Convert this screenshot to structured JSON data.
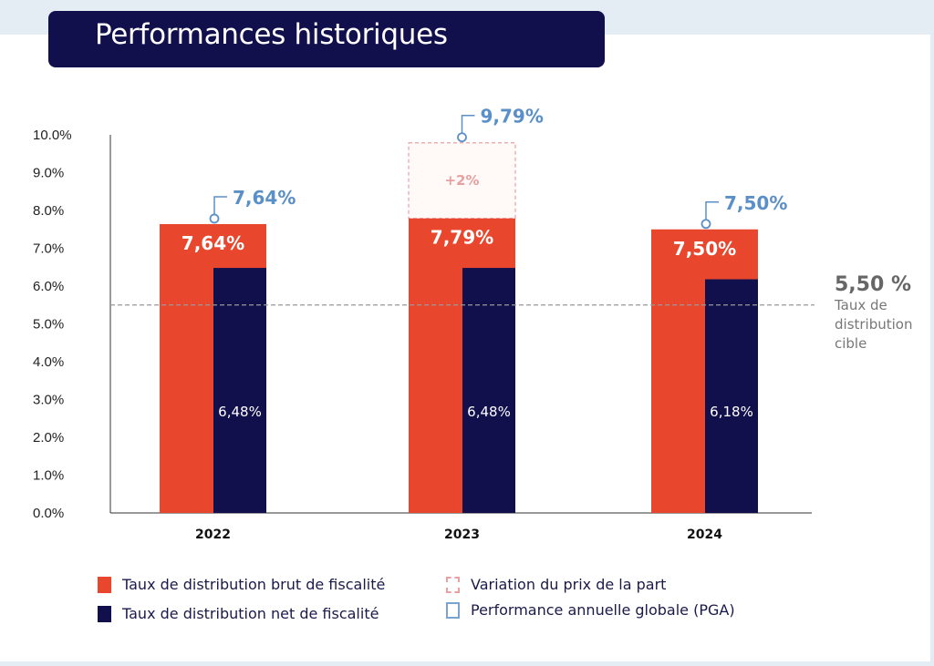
{
  "header": {
    "title": "Performances historiques"
  },
  "target": {
    "value": "5,50 %",
    "label_lines": [
      "Taux de",
      "distribution",
      "cible"
    ]
  },
  "chart_data": {
    "type": "bar",
    "categories": [
      "2022",
      "2023",
      "2024"
    ],
    "ylim": [
      0,
      10
    ],
    "yticks": [
      "0.0%",
      "1.0%",
      "2.0%",
      "3.0%",
      "4.0%",
      "5.0%",
      "6.0%",
      "7.0%",
      "8.0%",
      "9.0%",
      "10.0%"
    ],
    "series": [
      {
        "name": "Taux de distribution brut de fiscalité",
        "values": [
          7.64,
          7.79,
          7.5
        ],
        "labels": [
          "7,64%",
          "7,79%",
          "7,50%"
        ],
        "color": "#e8472e"
      },
      {
        "name": "Taux de distribution net de fiscalité",
        "values": [
          6.48,
          6.48,
          6.18
        ],
        "labels": [
          "6,48%",
          "6,48%",
          "6,18%"
        ],
        "color": "#120f4d"
      },
      {
        "name": "Variation du prix de la part",
        "values": [
          0,
          2,
          0
        ],
        "labels": [
          "",
          "+2%",
          ""
        ],
        "color": "#e8a0a0"
      },
      {
        "name": "Performance annuelle globale (PGA)",
        "values": [
          7.64,
          9.79,
          7.5
        ],
        "labels": [
          "7,64%",
          "9,79%",
          "7,50%"
        ],
        "color": "#5b8fc7"
      }
    ],
    "reference_line": {
      "value": 5.5,
      "style": "dashed"
    },
    "legend_position": "bottom"
  }
}
